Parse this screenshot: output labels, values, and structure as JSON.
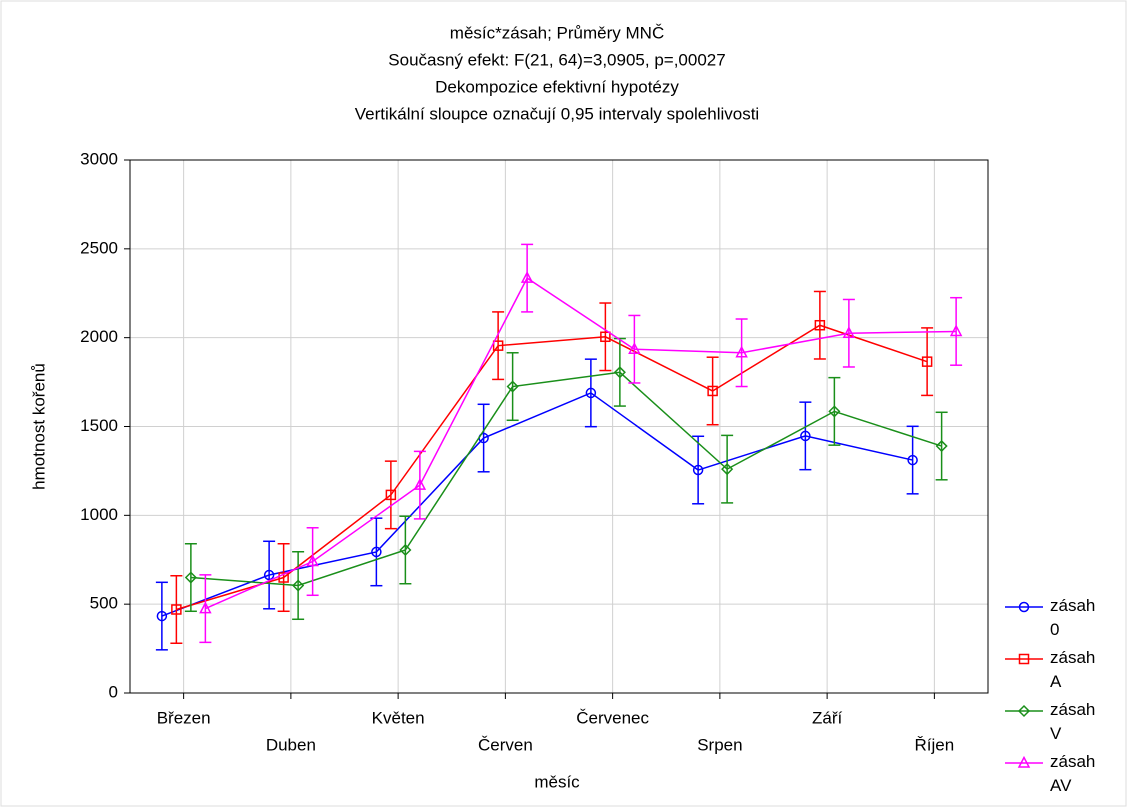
{
  "chart_data": {
    "type": "line",
    "title": [
      "měsíc*zásah; Průměry MNČ",
      "Současný efekt: F(21, 64)=3,0905, p=,00027",
      "Dekompozice efektivní hypotézy",
      "Vertikální sloupce označují 0,95 intervaly spolehlivosti"
    ],
    "xlabel": "měsíc",
    "ylabel": "hmotnost kořenů",
    "categories": [
      "Březen",
      "Duben",
      "Květen",
      "Červen",
      "Červenec",
      "Srpen",
      "Září",
      "Říjen"
    ],
    "series": [
      {
        "name": "zásah 0",
        "color": "#0000ff",
        "marker": "circle",
        "values": [
          433,
          664,
          794,
          1435,
          1689,
          1255,
          1447,
          1311
        ],
        "errors": [
          190,
          190,
          190,
          190,
          190,
          190,
          190,
          190
        ]
      },
      {
        "name": "zásah A",
        "color": "#ff0000",
        "marker": "square",
        "values": [
          470,
          650,
          1115,
          1955,
          2005,
          1700,
          2070,
          1865
        ],
        "errors": [
          190,
          190,
          190,
          190,
          190,
          190,
          190,
          190
        ]
      },
      {
        "name": "zásah V",
        "color": "#1a8f1a",
        "marker": "diamond",
        "values": [
          650,
          605,
          805,
          1725,
          1805,
          1260,
          1585,
          1390
        ],
        "errors": [
          190,
          190,
          190,
          190,
          190,
          190,
          190,
          190
        ]
      },
      {
        "name": "zásah AV",
        "color": "#ff00ff",
        "marker": "triangle",
        "values": [
          475,
          740,
          1170,
          2335,
          1935,
          1915,
          2025,
          2035
        ],
        "errors": [
          190,
          190,
          190,
          190,
          190,
          190,
          190,
          190
        ]
      }
    ],
    "ylim": [
      0,
      3000
    ],
    "yticks": [
      0,
      500,
      1000,
      1500,
      2000,
      2500,
      3000
    ],
    "grid": true,
    "legend": "lower right"
  }
}
